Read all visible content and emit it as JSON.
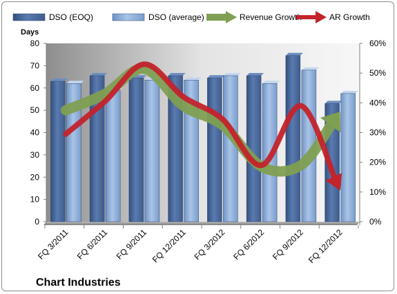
{
  "chart_data": {
    "type": "bar",
    "title": "Chart Industries",
    "ylabel": "Days",
    "ylim": [
      0,
      80
    ],
    "y_ticks": [
      "0",
      "10",
      "20",
      "30",
      "40",
      "50",
      "60",
      "70",
      "80"
    ],
    "y2lim": [
      0,
      60
    ],
    "y2_ticks": [
      "0%",
      "10%",
      "20%",
      "30%",
      "40%",
      "50%",
      "60%"
    ],
    "categories": [
      "FQ 3/2011",
      "FQ 6/2011",
      "FQ 9/2011",
      "FQ 12/2011",
      "FQ 3/2012",
      "FQ 6/2012",
      "FQ 9/2012",
      "FQ 12/2012"
    ],
    "series": [
      {
        "name": "DSO (EOQ)",
        "kind": "bar",
        "axis": "left",
        "color": "#4f6fa3",
        "values": [
          63,
          65.5,
          64.5,
          65.5,
          64.5,
          65.5,
          74.5,
          53
        ]
      },
      {
        "name": "DSO (average)",
        "kind": "bar",
        "axis": "left",
        "color": "#8eaed9",
        "values": [
          62,
          59,
          63.5,
          63.5,
          65.5,
          62,
          68,
          57.5
        ]
      },
      {
        "name": "Revenue Growth",
        "kind": "arrow-line",
        "axis": "right",
        "color": "#7f9f52",
        "values": [
          37.5,
          43,
          51.5,
          39,
          32.5,
          18.5,
          19,
          37
        ]
      },
      {
        "name": "AR Growth",
        "kind": "arrow-line",
        "axis": "right",
        "color": "#c3232b",
        "values": [
          29.5,
          40.5,
          53,
          42,
          34.5,
          19,
          39,
          10.5
        ]
      }
    ],
    "legend_position": "top",
    "grid": false
  }
}
